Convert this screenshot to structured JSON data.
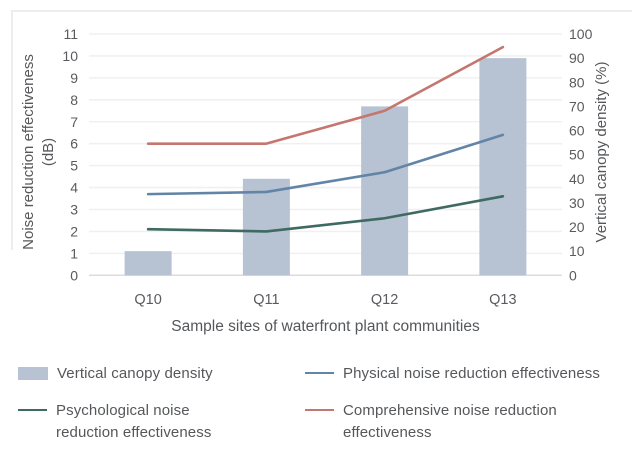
{
  "figure": {
    "background": "#ffffff",
    "border_color": "#ededed",
    "text_color": "#55575a",
    "tick_text_color": "#595b5f",
    "gridline_color": "#f0f0f0",
    "axisline_color": "#dcdcdc"
  },
  "chart_data": {
    "type": "bar+line combo, dual axis",
    "categories": [
      "Q10",
      "Q11",
      "Q12",
      "Q13"
    ],
    "x_axis": {
      "title": "Sample sites of waterfront plant communities"
    },
    "y_left": {
      "title_line1": "Noise reduction effectiveness",
      "title_line2": "(dB)",
      "min": 0,
      "max": 11,
      "ticks": [
        0,
        1,
        2,
        3,
        4,
        5,
        6,
        7,
        8,
        9,
        10,
        11
      ]
    },
    "y_right": {
      "title": "Vertical canopy density (%)",
      "min": 0,
      "max": 100,
      "ticks": [
        0,
        10,
        20,
        30,
        40,
        50,
        60,
        70,
        80,
        90,
        100
      ]
    },
    "grid": true,
    "legend_position": "bottom",
    "series": [
      {
        "name": "Vertical canopy density",
        "type": "bar",
        "axis": "right",
        "color": "#b7c3d3",
        "values": [
          10,
          40,
          70,
          90
        ]
      },
      {
        "name": "Physical noise reduction effectiveness",
        "type": "line",
        "axis": "left",
        "color": "#6285a7",
        "values": [
          3.7,
          3.8,
          4.7,
          6.4
        ]
      },
      {
        "name": "Psychological noise reduction effectiveness",
        "type": "line",
        "axis": "left",
        "color": "#3f6a61",
        "values": [
          2.1,
          2.0,
          2.6,
          3.6
        ]
      },
      {
        "name": "Comprehensive noise reduction effectiveness",
        "type": "line",
        "axis": "left",
        "color": "#c4766f",
        "values": [
          6.0,
          6.0,
          7.5,
          10.4
        ]
      }
    ]
  },
  "legend": {
    "items": [
      {
        "label": "Vertical canopy density",
        "swatch": "bar",
        "color": "#b7c3d3"
      },
      {
        "label": "Physical noise reduction effectiveness",
        "swatch": "line",
        "color": "#6285a7"
      },
      {
        "label": "Psychological noise reduction effectiveness",
        "swatch": "line",
        "color": "#3f6a61"
      },
      {
        "label": "Comprehensive noise reduction effectiveness",
        "swatch": "line",
        "color": "#c4766f"
      }
    ]
  }
}
